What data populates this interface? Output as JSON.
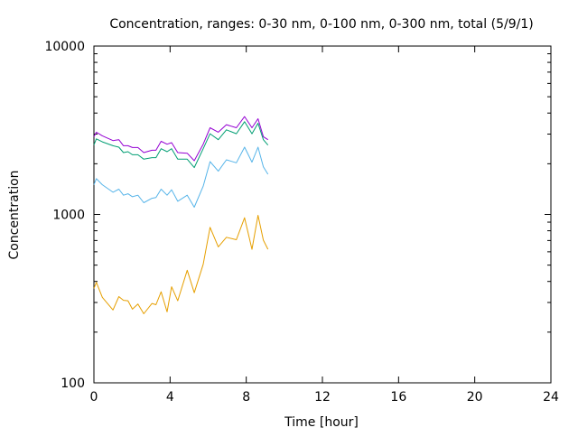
{
  "chart_data": {
    "type": "line",
    "title": "Concentration, ranges: 0-30 nm, 0-100 nm, 0-300 nm, total (5/9/1)",
    "xlabel": "Time [hour]",
    "ylabel": "Concentration",
    "xlim": [
      0,
      24
    ],
    "ylim": [
      100,
      10000
    ],
    "yscale": "log",
    "xticks": [
      0,
      4,
      8,
      12,
      16,
      20,
      24
    ],
    "xtick_labels": [
      "0",
      "4",
      "8",
      "12",
      "16",
      "20",
      "24"
    ],
    "yticks": [
      100,
      1000,
      10000
    ],
    "ytick_labels": [
      "100",
      "1000",
      "10000"
    ],
    "grid": false,
    "x": [
      0,
      0.13,
      0.44,
      1.0,
      1.31,
      1.55,
      1.79,
      2.02,
      2.31,
      2.62,
      3.05,
      3.26,
      3.53,
      3.84,
      4.08,
      4.4,
      4.9,
      5.27,
      5.74,
      6.1,
      6.53,
      6.96,
      7.48,
      7.91,
      8.3,
      8.62,
      8.9,
      9.14
    ],
    "series": [
      {
        "name": "total",
        "color": "#9400d3",
        "values": [
          2896,
          3078,
          2930,
          2745,
          2779,
          2558,
          2558,
          2497,
          2497,
          2330,
          2407,
          2407,
          2720,
          2612,
          2668,
          2330,
          2310,
          2085,
          2612,
          3270,
          3078,
          3412,
          3270,
          3813,
          3270,
          3703,
          2896,
          2779
        ]
      },
      {
        "name": "0-300 nm",
        "color": "#009e73",
        "values": [
          2590,
          2812,
          2700,
          2558,
          2508,
          2330,
          2360,
          2263,
          2263,
          2128,
          2173,
          2173,
          2456,
          2360,
          2456,
          2128,
          2128,
          1897,
          2456,
          3017,
          2779,
          3181,
          3017,
          3554,
          3017,
          3480,
          2779,
          2581
        ]
      },
      {
        "name": "0-100 nm",
        "color": "#56b4e9",
        "values": [
          1502,
          1630,
          1502,
          1355,
          1413,
          1300,
          1327,
          1274,
          1300,
          1174,
          1248,
          1259,
          1413,
          1300,
          1400,
          1198,
          1300,
          1104,
          1471,
          2060,
          1806,
          2110,
          2026,
          2508,
          2043,
          2508,
          1920,
          1733
        ]
      },
      {
        "name": "0-30 nm",
        "color": "#e69f00",
        "values": [
          364,
          395,
          322,
          271,
          325,
          309,
          307,
          274,
          294,
          257,
          296,
          291,
          347,
          264,
          372,
          307,
          466,
          343,
          506,
          838,
          642,
          732,
          708,
          955,
          621,
          988,
          703,
          621
        ]
      }
    ]
  }
}
